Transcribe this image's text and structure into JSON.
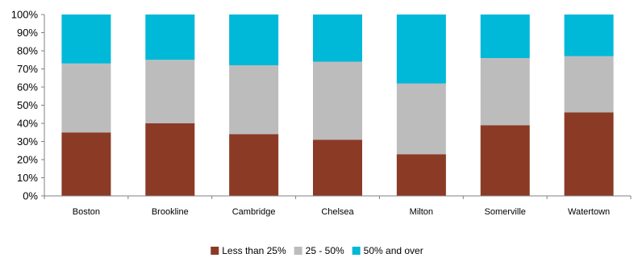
{
  "chart_data": {
    "type": "bar",
    "stacked": true,
    "percent": true,
    "categories": [
      "Boston",
      "Brookline",
      "Cambridge",
      "Chelsea",
      "Milton",
      "Somerville",
      "Watertown"
    ],
    "series": [
      {
        "name": "Less than 25%",
        "color": "#8b3a26",
        "values": [
          35,
          40,
          34,
          31,
          23,
          39,
          46
        ]
      },
      {
        "name": "25 - 50%",
        "color": "#bdbcbd",
        "values": [
          38,
          35,
          38,
          43,
          39,
          37,
          31
        ]
      },
      {
        "name": "50% and over",
        "color": "#00b8d7",
        "values": [
          27,
          25,
          28,
          26,
          38,
          24,
          23
        ]
      }
    ],
    "ylim": [
      0,
      100
    ],
    "yticks": [
      "0%",
      "10%",
      "20%",
      "30%",
      "40%",
      "50%",
      "60%",
      "70%",
      "80%",
      "90%",
      "100%"
    ],
    "grid": false,
    "legend_position": "bottom",
    "title": "",
    "xlabel": "",
    "ylabel": ""
  }
}
